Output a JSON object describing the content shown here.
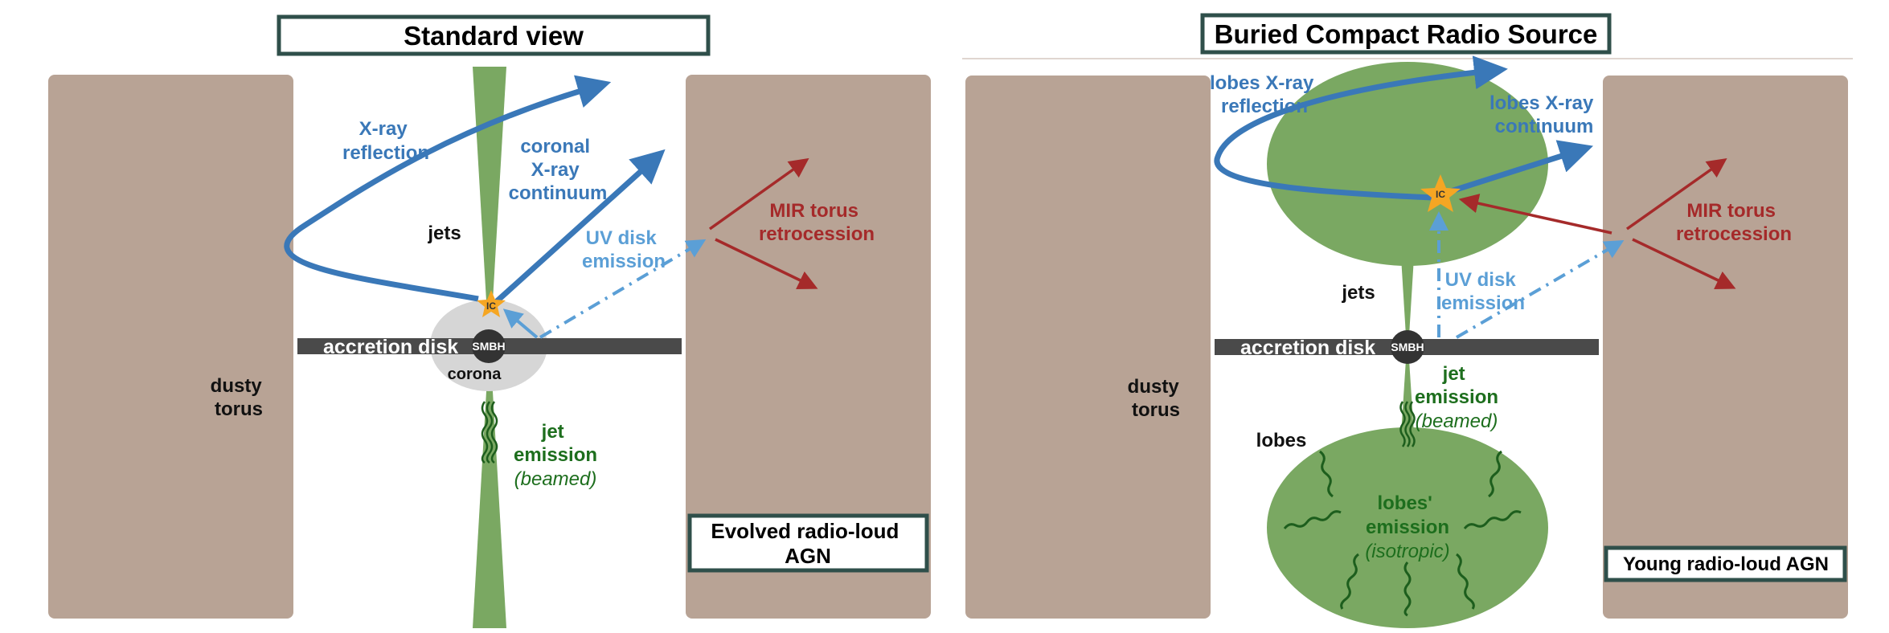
{
  "panels": {
    "left": {
      "title": "Standard view",
      "dusty_torus": [
        "dusty",
        "torus"
      ],
      "xray_reflection": [
        "X-ray",
        "reflection"
      ],
      "coronal_continuum": [
        "coronal",
        "X-ray",
        "continuum"
      ],
      "jets": "jets",
      "uv_disk": [
        "UV disk",
        "emission"
      ],
      "mir_torus": [
        "MIR torus",
        "retrocession"
      ],
      "accretion_disk": "accretion disk",
      "smbh": "SMBH",
      "corona": "corona",
      "ic": "IC",
      "jet_emission": [
        "jet",
        "emission"
      ],
      "beamed": "(beamed)",
      "class_box": [
        "Evolved radio-loud",
        "AGN"
      ]
    },
    "right": {
      "title": "Buried Compact Radio Source",
      "dusty_torus": [
        "dusty",
        "torus"
      ],
      "lobes_reflection": [
        "lobes X-ray",
        "reflection"
      ],
      "lobes_continuum": [
        "lobes X-ray",
        "continuum"
      ],
      "jets": "jets",
      "uv_disk": [
        "UV disk",
        "emission"
      ],
      "mir_torus": [
        "MIR torus",
        "retrocession"
      ],
      "accretion_disk": "accretion disk",
      "smbh": "SMBH",
      "ic": "IC",
      "jet_emission": [
        "jet",
        "emission"
      ],
      "beamed": "(beamed)",
      "lobes": "lobes",
      "lobes_emission": [
        "lobes'",
        "emission"
      ],
      "isotropic": "(isotropic)",
      "class_box": "Young radio-loud AGN"
    }
  },
  "colors": {
    "torus": "#b8a395",
    "jet_green": "#7aa862",
    "xray_blue": "#3a78b8",
    "uv_blue": "#5b9fd6",
    "mir_red": "#a52a2a",
    "disk_gray": "#4a4a4a",
    "corona_gray": "#d6d6d6",
    "box_border": "#2f4f4a",
    "star_orange": "#f5a623"
  }
}
